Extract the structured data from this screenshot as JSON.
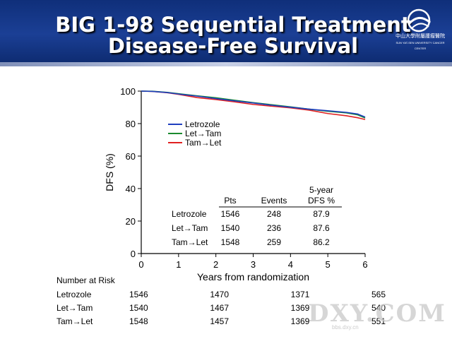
{
  "header": {
    "title_line1": "BIG 1-98 Sequential Treatment",
    "title_line2": "Disease-Free Survival",
    "logo_text_cn": "中山大學附屬腫瘤醫院",
    "logo_text_en": "SUN YAT-SEN UNIVERSITY CANCER CENTER"
  },
  "watermark": {
    "text": "DXY.COM",
    "sub": "bbs.dxy.cn"
  },
  "colors": {
    "header_bg": "#1b3f95",
    "letrozole": "#1f3fbf",
    "let_tam": "#1a8a2e",
    "tam_let": "#e02020"
  },
  "chart_data": {
    "type": "line",
    "xlabel": "Years from randomization",
    "ylabel": "DFS (%)",
    "xlim": [
      0,
      6
    ],
    "ylim": [
      0,
      100
    ],
    "xticks": [
      0,
      1,
      2,
      3,
      4,
      5,
      6
    ],
    "yticks": [
      0,
      20,
      40,
      60,
      80,
      100
    ],
    "legend_position": "upper-left inside plot",
    "series": [
      {
        "name": "Letrozole",
        "color": "#1f3fbf",
        "x": [
          0,
          0.3,
          0.7,
          1.0,
          1.5,
          2.0,
          2.5,
          3.0,
          3.5,
          4.0,
          4.5,
          5.0,
          5.5,
          5.8,
          6.0
        ],
        "y": [
          100,
          99.8,
          99.1,
          98.2,
          96.9,
          95.4,
          94.0,
          92.7,
          91.3,
          90.1,
          88.9,
          87.9,
          86.9,
          85.9,
          84.0
        ]
      },
      {
        "name": "Let→Tam",
        "color": "#1a8a2e",
        "x": [
          0,
          0.3,
          0.7,
          1.0,
          1.5,
          2.0,
          2.5,
          3.0,
          3.5,
          4.0,
          4.5,
          5.0,
          5.5,
          5.8,
          6.0
        ],
        "y": [
          100,
          99.9,
          99.2,
          98.4,
          97.1,
          95.9,
          94.4,
          92.9,
          91.6,
          90.3,
          88.9,
          87.6,
          86.6,
          85.4,
          83.5
        ]
      },
      {
        "name": "Tam→Let",
        "color": "#e02020",
        "x": [
          0,
          0.3,
          0.7,
          1.0,
          1.5,
          2.0,
          2.5,
          3.0,
          3.5,
          4.0,
          4.5,
          5.0,
          5.5,
          5.8,
          6.0
        ],
        "y": [
          100,
          99.8,
          99.0,
          98.0,
          96.0,
          94.8,
          93.4,
          91.8,
          90.7,
          89.7,
          88.3,
          86.2,
          84.8,
          83.6,
          82.5
        ]
      }
    ],
    "stats_table": {
      "headers": [
        "",
        "Pts",
        "Events",
        "5-year DFS %"
      ],
      "header_line1": "5-year",
      "header_line2": "DFS %",
      "rows": [
        [
          "Letrozole",
          "1546",
          "248",
          "87.9"
        ],
        [
          "Let→Tam",
          "1540",
          "236",
          "87.6"
        ],
        [
          "Tam→Let",
          "1548",
          "259",
          "86.2"
        ]
      ]
    },
    "risk_table": {
      "title": "Number at Risk",
      "time_points": [
        0,
        2,
        4,
        6
      ],
      "rows": [
        {
          "label": "Letrozole",
          "values": [
            "1546",
            "1470",
            "1371",
            "565"
          ]
        },
        {
          "label": "Let→Tam",
          "values": [
            "1540",
            "1467",
            "1369",
            "540"
          ]
        },
        {
          "label": "Tam→Let",
          "values": [
            "1548",
            "1457",
            "1369",
            "551"
          ]
        }
      ]
    }
  }
}
